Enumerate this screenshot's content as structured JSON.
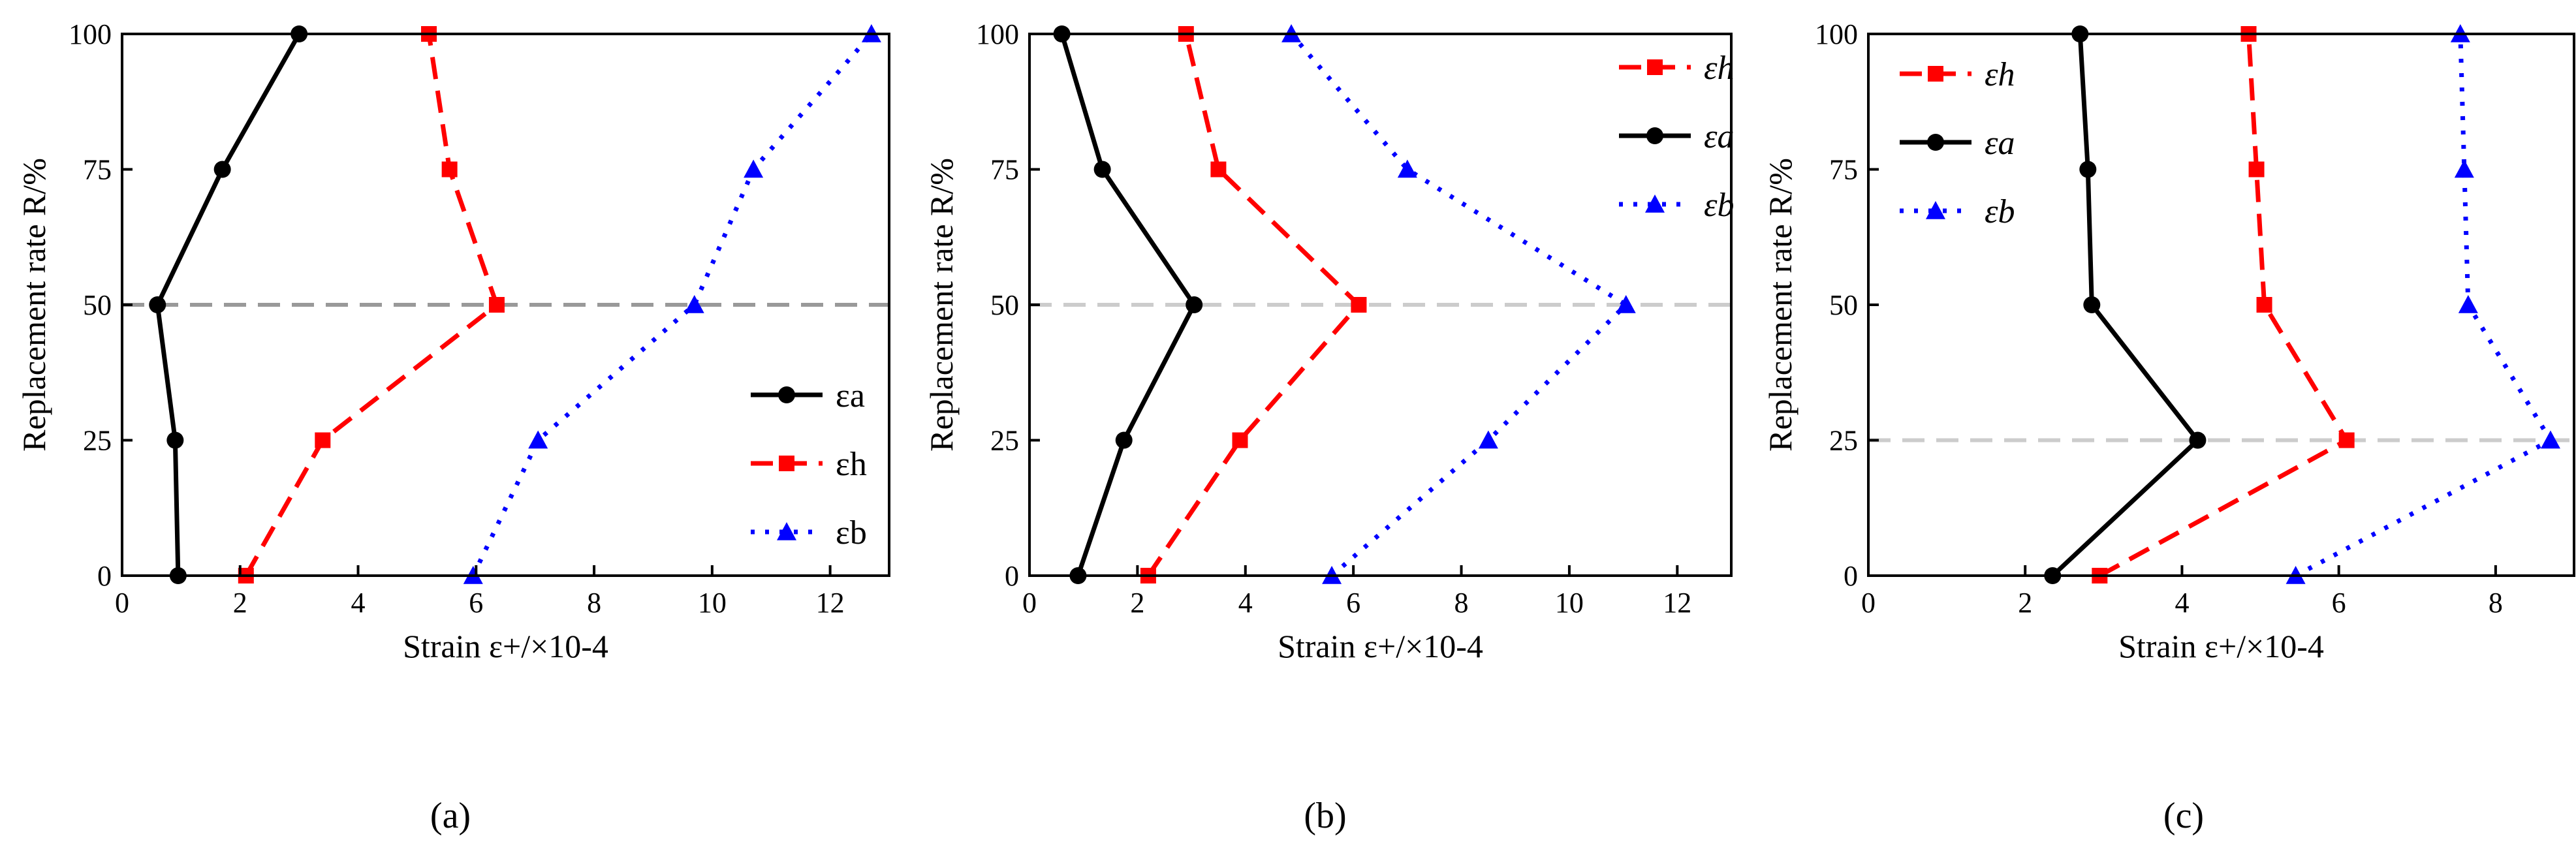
{
  "figure": {
    "captions": [
      "(a)",
      "(b)",
      "(c)"
    ]
  },
  "chart_data": [
    {
      "type": "line",
      "panel": "a",
      "caption": "(a)",
      "xlabel": "Strain ε+/×10-4",
      "ylabel": "Replacement rate R/%",
      "xlim": [
        0,
        13
      ],
      "ylim": [
        0,
        100
      ],
      "xticks": [
        0,
        2,
        4,
        6,
        8,
        10,
        12
      ],
      "yticks": [
        0,
        25,
        50,
        75,
        100
      ],
      "reference_line": {
        "y": 50,
        "color": "#999999"
      },
      "legend_position": "bottom-right",
      "series": [
        {
          "name": "εa",
          "symbol": "ε",
          "sub": "a",
          "color": "#000000",
          "marker": "circle",
          "dash": "solid",
          "x": [
            0.95,
            0.9,
            0.6,
            1.7,
            3.0
          ],
          "y": [
            0,
            25,
            50,
            75,
            100
          ]
        },
        {
          "name": "εh",
          "symbol": "ε",
          "sub": "h",
          "color": "#ff0000",
          "marker": "square",
          "dash": "dashed",
          "x": [
            2.1,
            3.4,
            6.35,
            5.55,
            5.2
          ],
          "y": [
            0,
            25,
            50,
            75,
            100
          ]
        },
        {
          "name": "εb",
          "symbol": "ε",
          "sub": "b",
          "color": "#0000ff",
          "marker": "triangle",
          "dash": "dotted",
          "x": [
            5.95,
            7.05,
            9.7,
            10.7,
            12.7
          ],
          "y": [
            0,
            25,
            50,
            75,
            100
          ]
        }
      ]
    },
    {
      "type": "line",
      "panel": "b",
      "caption": "(b)",
      "xlabel": "Strain ε+/×10-4",
      "ylabel": "Replacement rate R/%",
      "xlim": [
        0,
        13
      ],
      "ylim": [
        0,
        100
      ],
      "xticks": [
        0,
        2,
        4,
        6,
        8,
        10,
        12
      ],
      "yticks": [
        0,
        25,
        50,
        75,
        100
      ],
      "reference_line": {
        "y": 50,
        "color": "#cccccc"
      },
      "legend_position": "top-right",
      "series": [
        {
          "name": "εh",
          "symbol": "ε",
          "sub": "h",
          "color": "#ff0000",
          "marker": "square",
          "dash": "dashed",
          "x": [
            2.2,
            3.9,
            6.1,
            3.5,
            2.9
          ],
          "y": [
            0,
            25,
            50,
            75,
            100
          ]
        },
        {
          "name": "εa",
          "symbol": "ε",
          "sub": "a",
          "color": "#000000",
          "marker": "circle",
          "dash": "solid",
          "x": [
            0.9,
            1.75,
            3.05,
            1.35,
            0.6
          ],
          "y": [
            0,
            25,
            50,
            75,
            100
          ]
        },
        {
          "name": "εb",
          "symbol": "ε",
          "sub": "b",
          "color": "#0000ff",
          "marker": "triangle",
          "dash": "dotted",
          "x": [
            5.6,
            8.5,
            11.05,
            7.0,
            4.85
          ],
          "y": [
            0,
            25,
            50,
            75,
            100
          ]
        }
      ]
    },
    {
      "type": "line",
      "panel": "c",
      "caption": "(c)",
      "xlabel": "Strain ε+/×10-4",
      "ylabel": "Replacement rate R/%",
      "xlim": [
        0,
        9
      ],
      "ylim": [
        0,
        100
      ],
      "xticks": [
        0,
        2,
        4,
        6,
        8
      ],
      "yticks": [
        0,
        25,
        50,
        75,
        100
      ],
      "reference_line": {
        "y": 25,
        "color": "#cccccc"
      },
      "legend_position": "top-left",
      "series": [
        {
          "name": "εh",
          "symbol": "ε",
          "sub": "h",
          "color": "#ff0000",
          "marker": "square",
          "dash": "dashed",
          "x": [
            2.95,
            6.1,
            5.05,
            4.95,
            4.85
          ],
          "y": [
            0,
            25,
            50,
            75,
            100
          ]
        },
        {
          "name": "εa",
          "symbol": "ε",
          "sub": "a",
          "color": "#000000",
          "marker": "circle",
          "dash": "solid",
          "x": [
            2.35,
            4.2,
            2.85,
            2.8,
            2.7
          ],
          "y": [
            0,
            25,
            50,
            75,
            100
          ]
        },
        {
          "name": "εb",
          "symbol": "ε",
          "sub": "b",
          "color": "#0000ff",
          "marker": "triangle",
          "dash": "dotted",
          "x": [
            5.45,
            8.7,
            7.65,
            7.6,
            7.55
          ],
          "y": [
            0,
            25,
            50,
            75,
            100
          ]
        }
      ]
    }
  ]
}
